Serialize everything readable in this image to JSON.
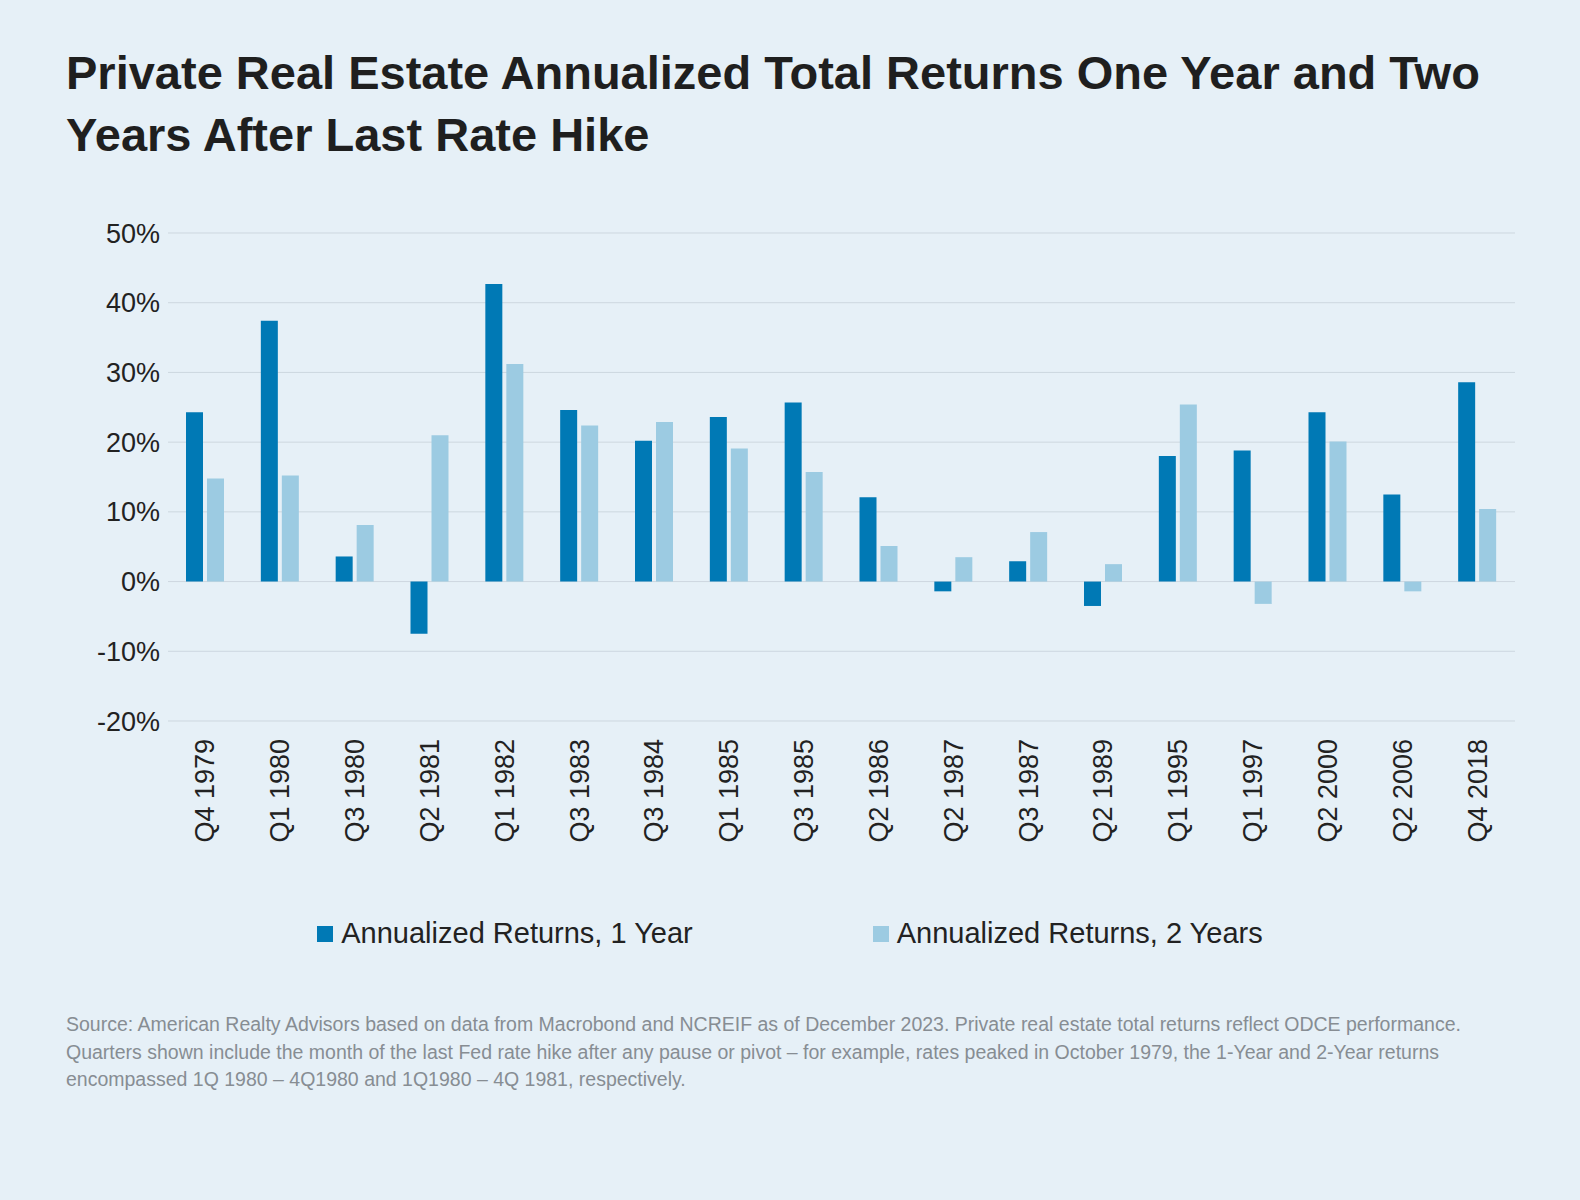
{
  "chart_data": {
    "type": "bar",
    "title": "Private Real Estate Annualized Total Returns One Year and Two Years After Last Rate Hike",
    "source": "Source: American Realty Advisors based on data from Macrobond and NCREIF as of December 2023. Private real estate total returns reflect ODCE performance. Quarters shown include the month of the last Fed rate hike after any pause or pivot – for example, rates peaked in October 1979, the 1-Year and 2-Year returns encompassed 1Q 1980 – 4Q1980 and 1Q1980 – 4Q 1981, respectively.",
    "categories": [
      "Q4 1979",
      "Q1 1980",
      "Q3 1980",
      "Q2 1981",
      "Q1 1982",
      "Q3 1983",
      "Q3 1984",
      "Q1 1985",
      "Q3 1985",
      "Q2 1986",
      "Q2 1987",
      "Q3 1987",
      "Q2 1989",
      "Q1 1995",
      "Q1 1997",
      "Q2 2000",
      "Q2 2006",
      "Q4 2018"
    ],
    "series": [
      {
        "name": "Annualized Returns, 1 Year",
        "color": "#0079b5",
        "values": [
          24.3,
          37.4,
          3.6,
          -7.5,
          42.7,
          24.6,
          20.2,
          23.6,
          25.7,
          12.1,
          -1.4,
          2.9,
          -3.5,
          18.0,
          18.8,
          24.3,
          12.5,
          28.6
        ]
      },
      {
        "name": "Annualized Returns, 2 Years",
        "color": "#9ccbe2",
        "values": [
          14.8,
          15.2,
          8.1,
          21.0,
          31.2,
          22.4,
          22.9,
          19.1,
          15.7,
          5.1,
          3.5,
          7.1,
          2.5,
          25.4,
          -3.2,
          20.1,
          -1.4,
          10.4
        ]
      }
    ],
    "ylim": [
      -20,
      50
    ],
    "yticks": [
      {
        "value": -20,
        "label": "-20%"
      },
      {
        "value": -10,
        "label": "-10%"
      },
      {
        "value": 0,
        "label": "0%"
      },
      {
        "value": 10,
        "label": "10%"
      },
      {
        "value": 20,
        "label": "20%"
      },
      {
        "value": 30,
        "label": "30%"
      },
      {
        "value": 40,
        "label": "40%"
      },
      {
        "value": 50,
        "label": "50%"
      }
    ],
    "grid": true
  }
}
